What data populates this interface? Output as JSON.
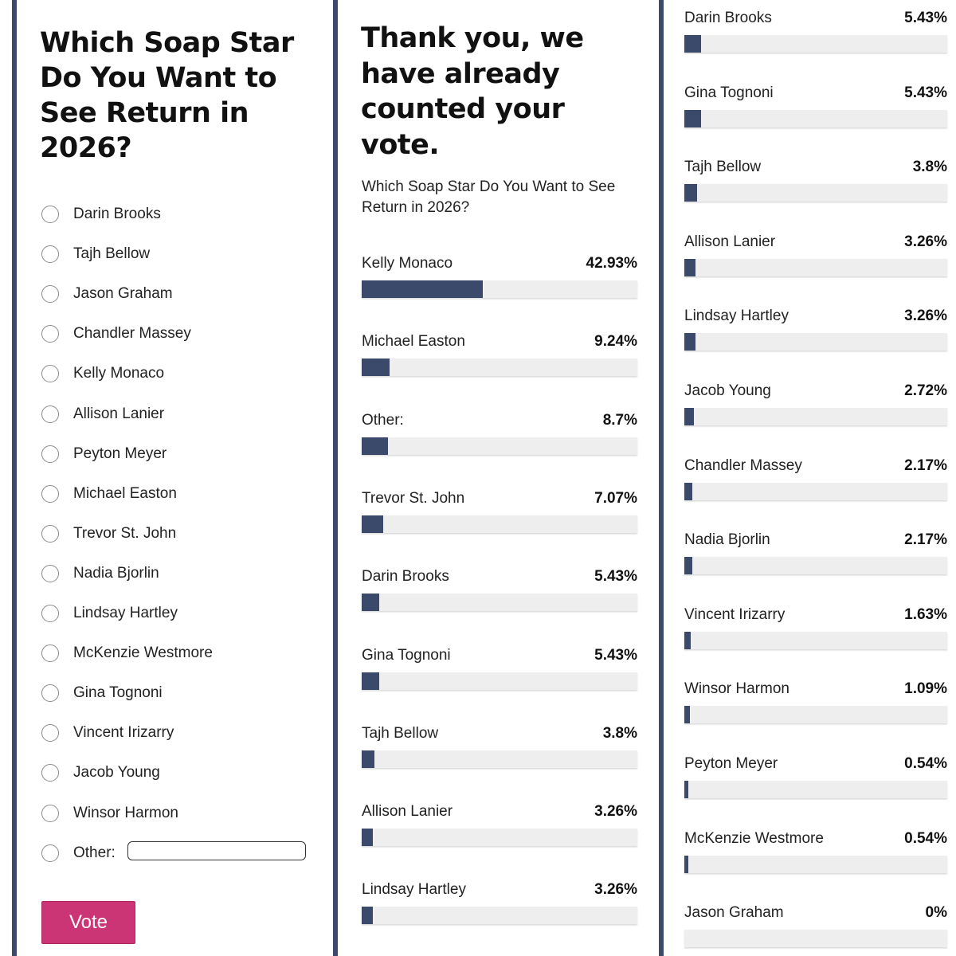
{
  "colors": {
    "accent": "#3b4a6b",
    "vote_button": "#cc3575",
    "bar_track": "#eeeeee"
  },
  "vote_form": {
    "title": "Which Soap Star Do You Want to See Return in 2026?",
    "options": [
      "Darin Brooks",
      "Tajh Bellow",
      "Jason Graham",
      "Chandler Massey",
      "Kelly Monaco",
      "Allison Lanier",
      "Peyton Meyer",
      "Michael Easton",
      "Trevor St. John",
      "Nadia Bjorlin",
      "Lindsay Hartley",
      "McKenzie Westmore",
      "Gina Tognoni",
      "Vincent Irizarry",
      "Jacob Young",
      "Winsor Harmon",
      "Other:"
    ],
    "other_input_value": "",
    "vote_button": "Vote"
  },
  "results": {
    "thank_you": "Thank you, we have already counted your vote.",
    "question": "Which Soap Star Do You Want to See Return in 2026?",
    "column_1": [
      {
        "name": "Kelly Monaco",
        "percent": "42.93%",
        "value": 42.93
      },
      {
        "name": "Michael Easton",
        "percent": "9.24%",
        "value": 9.24
      },
      {
        "name": "Other:",
        "percent": "8.7%",
        "value": 8.7
      },
      {
        "name": "Trevor St. John",
        "percent": "7.07%",
        "value": 7.07
      },
      {
        "name": "Darin Brooks",
        "percent": "5.43%",
        "value": 5.43
      },
      {
        "name": "Gina Tognoni",
        "percent": "5.43%",
        "value": 5.43
      },
      {
        "name": "Tajh Bellow",
        "percent": "3.8%",
        "value": 3.8
      },
      {
        "name": "Allison Lanier",
        "percent": "3.26%",
        "value": 3.26
      },
      {
        "name": "Lindsay Hartley",
        "percent": "3.26%",
        "value": 3.26
      }
    ],
    "column_2": [
      {
        "name": "Darin Brooks",
        "percent": "5.43%",
        "value": 5.43
      },
      {
        "name": "Gina Tognoni",
        "percent": "5.43%",
        "value": 5.43
      },
      {
        "name": "Tajh Bellow",
        "percent": "3.8%",
        "value": 3.8
      },
      {
        "name": "Allison Lanier",
        "percent": "3.26%",
        "value": 3.26
      },
      {
        "name": "Lindsay Hartley",
        "percent": "3.26%",
        "value": 3.26
      },
      {
        "name": "Jacob Young",
        "percent": "2.72%",
        "value": 2.72
      },
      {
        "name": "Chandler Massey",
        "percent": "2.17%",
        "value": 2.17
      },
      {
        "name": "Nadia Bjorlin",
        "percent": "2.17%",
        "value": 2.17
      },
      {
        "name": "Vincent Irizarry",
        "percent": "1.63%",
        "value": 1.63
      },
      {
        "name": "Winsor Harmon",
        "percent": "1.09%",
        "value": 1.09
      },
      {
        "name": "Peyton Meyer",
        "percent": "0.54%",
        "value": 0.54
      },
      {
        "name": "McKenzie Westmore",
        "percent": "0.54%",
        "value": 0.54
      },
      {
        "name": "Jason Graham",
        "percent": "0%",
        "value": 0
      }
    ]
  }
}
